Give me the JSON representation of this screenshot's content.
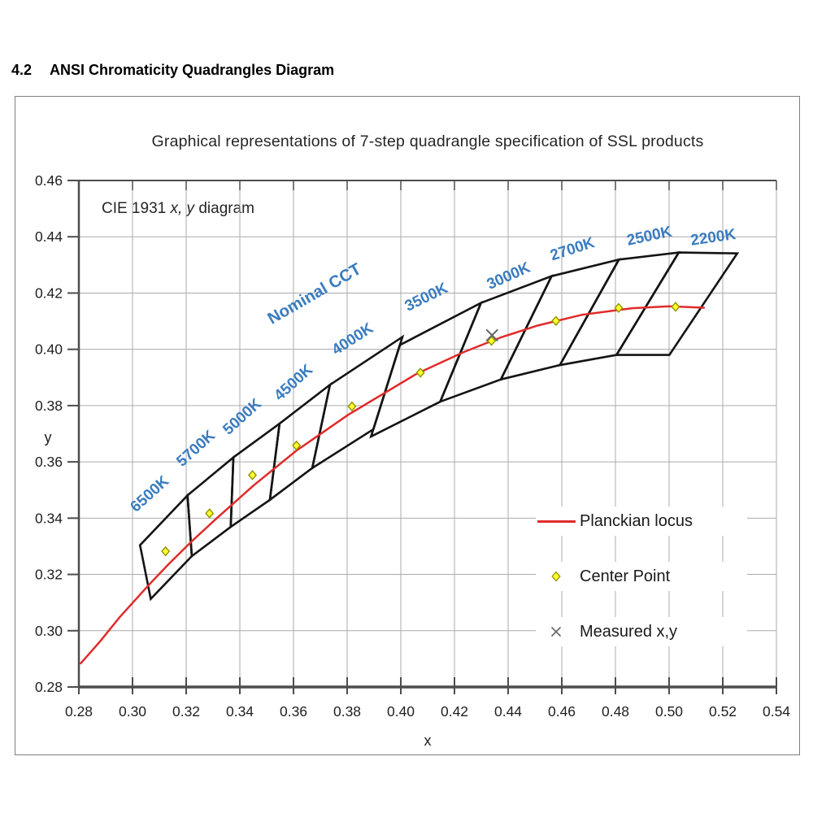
{
  "document": {
    "section_number": "4.2",
    "section_title": "ANSI Chromaticity Quadrangles Diagram"
  },
  "figure": {
    "title": "Graphical representations of 7-step quadrangle specification of SSL products",
    "annotation": {
      "prefix": "CIE 1931 ",
      "italic": "x, y",
      "suffix": " diagram"
    }
  },
  "legend": {
    "items": [
      {
        "label": "Planckian locus",
        "marker": "red-line"
      },
      {
        "label": "Center Point",
        "marker": "yellow-diamond"
      },
      {
        "label": "Measured x,y",
        "marker": "gray-cross"
      }
    ]
  },
  "colors": {
    "cct_label_blue": "#3A7CBF",
    "locus_red": "#E02B2B",
    "quad_black": "#141414",
    "grid_gray": "#ABABAB",
    "spine_gray": "#4D4D4D",
    "center_fill": "#FFFF2E",
    "center_stroke": "#919100",
    "measured_gray": "#666666",
    "text_dark": "#1F1F1F",
    "frame_border": "#7F7F7F"
  },
  "chart_data": {
    "type": "scatter",
    "title": "Graphical representations of 7-step quadrangle specification of SSL products",
    "xlabel": "x",
    "ylabel": "y",
    "xlim": [
      0.28,
      0.54
    ],
    "ylim": [
      0.28,
      0.46
    ],
    "x_ticks": [
      0.28,
      0.3,
      0.32,
      0.34,
      0.36,
      0.38,
      0.4,
      0.42,
      0.44,
      0.46,
      0.48,
      0.5,
      0.52,
      0.54
    ],
    "y_ticks": [
      0.28,
      0.3,
      0.32,
      0.34,
      0.36,
      0.38,
      0.4,
      0.42,
      0.44,
      0.46
    ],
    "grid": true,
    "legend_position": "lower-right",
    "nominal_cct_annotation": {
      "text": "Nominal CCT",
      "pos": [
        0.3688,
        0.4181
      ],
      "rot": -30
    },
    "planckian_locus": [
      [
        0.2807,
        0.2884
      ],
      [
        0.288,
        0.2963
      ],
      [
        0.2952,
        0.3048
      ],
      [
        0.3064,
        0.3166
      ],
      [
        0.3135,
        0.3237
      ],
      [
        0.3221,
        0.3318
      ],
      [
        0.3319,
        0.3404
      ],
      [
        0.3451,
        0.3516
      ],
      [
        0.3611,
        0.364
      ],
      [
        0.3805,
        0.3768
      ],
      [
        0.4059,
        0.3913
      ],
      [
        0.4234,
        0.399
      ],
      [
        0.4369,
        0.4041
      ],
      [
        0.4512,
        0.4085
      ],
      [
        0.4677,
        0.4123
      ],
      [
        0.4862,
        0.4146
      ],
      [
        0.5,
        0.4153
      ],
      [
        0.513,
        0.4148
      ]
    ],
    "quadrangles": [
      {
        "cct": "6500K",
        "center": [
          0.3123,
          0.3282
        ],
        "corners": [
          [
            0.3028,
            0.3304
          ],
          [
            0.3205,
            0.3481
          ],
          [
            0.3221,
            0.3265
          ],
          [
            0.3068,
            0.3113
          ]
        ],
        "label_pos": [
          0.3076,
          0.3473
        ],
        "label_rot": -42
      },
      {
        "cct": "5700K",
        "center": [
          0.3287,
          0.3417
        ],
        "corners": [
          [
            0.3205,
            0.3481
          ],
          [
            0.3376,
            0.3616
          ],
          [
            0.3366,
            0.3369
          ],
          [
            0.3221,
            0.3265
          ]
        ],
        "label_pos": [
          0.3248,
          0.3635
        ],
        "label_rot": -42
      },
      {
        "cct": "5000K",
        "center": [
          0.3447,
          0.3553
        ],
        "corners": [
          [
            0.3376,
            0.3616
          ],
          [
            0.3548,
            0.3736
          ],
          [
            0.3512,
            0.3465
          ],
          [
            0.3366,
            0.3369
          ]
        ],
        "label_pos": [
          0.3421,
          0.3748
        ],
        "label_rot": -42
      },
      {
        "cct": "4500K",
        "center": [
          0.3611,
          0.3658
        ],
        "corners": [
          [
            0.3548,
            0.3736
          ],
          [
            0.3736,
            0.3874
          ],
          [
            0.367,
            0.3578
          ],
          [
            0.3512,
            0.3465
          ]
        ],
        "label_pos": [
          0.3612,
          0.3869
        ],
        "label_rot": -42
      },
      {
        "cct": "4000K",
        "center": [
          0.3818,
          0.3797
        ],
        "corners": [
          [
            0.3736,
            0.3874
          ],
          [
            0.4006,
            0.4044
          ],
          [
            0.3898,
            0.3716
          ],
          [
            0.367,
            0.3578
          ]
        ],
        "label_pos": [
          0.383,
          0.4022
        ],
        "label_rot": -33
      },
      {
        "cct": "3500K",
        "center": [
          0.4073,
          0.3917
        ],
        "corners": [
          [
            0.3996,
            0.4015
          ],
          [
            0.4299,
            0.4165
          ],
          [
            0.4147,
            0.3814
          ],
          [
            0.3889,
            0.369
          ]
        ],
        "label_pos": [
          0.4103,
          0.417
        ],
        "label_rot": -26
      },
      {
        "cct": "3000K",
        "center": [
          0.4338,
          0.403
        ],
        "corners": [
          [
            0.4299,
            0.4165
          ],
          [
            0.4562,
            0.426
          ],
          [
            0.4373,
            0.3893
          ],
          [
            0.4147,
            0.3814
          ]
        ],
        "label_pos": [
          0.4409,
          0.4245
        ],
        "label_rot": -24
      },
      {
        "cct": "2700K",
        "center": [
          0.4578,
          0.4101
        ],
        "corners": [
          [
            0.4562,
            0.426
          ],
          [
            0.4813,
            0.4319
          ],
          [
            0.4593,
            0.3944
          ],
          [
            0.4373,
            0.3893
          ]
        ],
        "label_pos": [
          0.4645,
          0.434
        ],
        "label_rot": -18
      },
      {
        "cct": "2500K",
        "center": [
          0.4812,
          0.4147
        ],
        "corners": [
          [
            0.4813,
            0.4319
          ],
          [
            0.5036,
            0.4344
          ],
          [
            0.4804,
            0.398
          ],
          [
            0.4593,
            0.3944
          ]
        ],
        "label_pos": [
          0.493,
          0.4386
        ],
        "label_rot": -12
      },
      {
        "cct": "2200K",
        "center": [
          0.5024,
          0.4151
        ],
        "corners": [
          [
            0.5036,
            0.4344
          ],
          [
            0.5254,
            0.4341
          ],
          [
            0.5001,
            0.398
          ],
          [
            0.4804,
            0.398
          ]
        ],
        "label_pos": [
          0.5167,
          0.4381
        ],
        "label_rot": -8
      }
    ],
    "measured_point": [
      0.434,
      0.405
    ]
  }
}
